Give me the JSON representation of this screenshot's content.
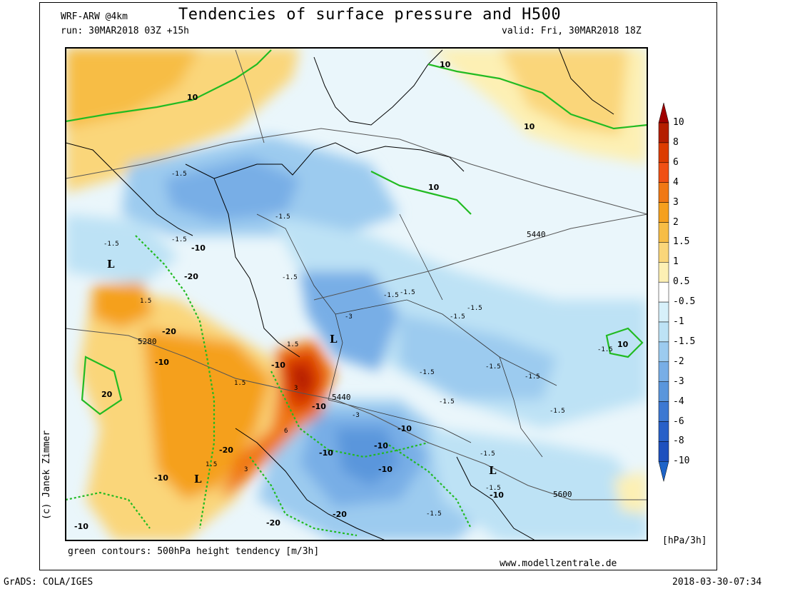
{
  "header": {
    "title": "Tendencies of surface pressure and H500",
    "model": "WRF-ARW @4km",
    "run": "run: 30MAR2018 03Z +15h",
    "valid": "valid: Fri, 30MAR2018 18Z"
  },
  "footer": {
    "note": "green contours: 500hPa height tendency [m/3h]",
    "site": "www.modellzentrale.de",
    "software": "GrADS: COLA/IGES",
    "timestamp": "2018-03-30-07:34",
    "credit": "(c) Janek Zimmer"
  },
  "colorbar": {
    "unit": "[hPa/3h]",
    "labels": [
      "10",
      "8",
      "6",
      "4",
      "3",
      "2",
      "1.5",
      "1",
      "0.5",
      "-0.5",
      "-1",
      "-1.5",
      "-2",
      "-3",
      "-4",
      "-6",
      "-8",
      "-10"
    ],
    "colors": [
      "#b41e00",
      "#dc3c00",
      "#f05014",
      "#f07814",
      "#f5a01e",
      "#f7bd45",
      "#fad67a",
      "#fdf0b4",
      "#ffffff",
      "#d7f0fa",
      "#bde2f5",
      "#9ccbef",
      "#78aee6",
      "#5a96dc",
      "#3c78d2",
      "#2860c8",
      "#1e50be"
    ],
    "top_arrow_color": "#a00000",
    "bottom_arrow_color": "#1e64c8"
  },
  "map": {
    "pressure_tendency_labels": [
      "-1.5",
      "-1.5",
      "-1.5",
      "-1.5",
      "-1.5",
      "-1.5",
      "-1.5",
      "-1.5",
      "-1.5",
      "-1.5",
      "-1.5",
      "-1.5",
      "-1.5",
      "-1.5",
      "-1.5",
      "-1.5",
      "-1.5",
      "-1.5",
      "-3",
      "-3",
      "1.5",
      "1.5",
      "1.5",
      "1.5",
      "3",
      "3",
      "6"
    ],
    "height_tendency_labels": [
      "10",
      "10",
      "10",
      "10",
      "10",
      "-10",
      "-10",
      "-10",
      "-10",
      "-10",
      "-10",
      "-10",
      "-10",
      "-10",
      "-10",
      "-10",
      "-20",
      "-20",
      "-20",
      "-20",
      "-20",
      "20"
    ],
    "geopotential_labels": [
      "5440",
      "5280",
      "5440",
      "5600"
    ],
    "low_markers": [
      "L",
      "L",
      "L",
      "L"
    ],
    "colors": {
      "ocean_background": "#eaf6fb",
      "height_contour": "#22bb22",
      "coastline": "#000000",
      "geopotential_contour": "#555555"
    }
  }
}
